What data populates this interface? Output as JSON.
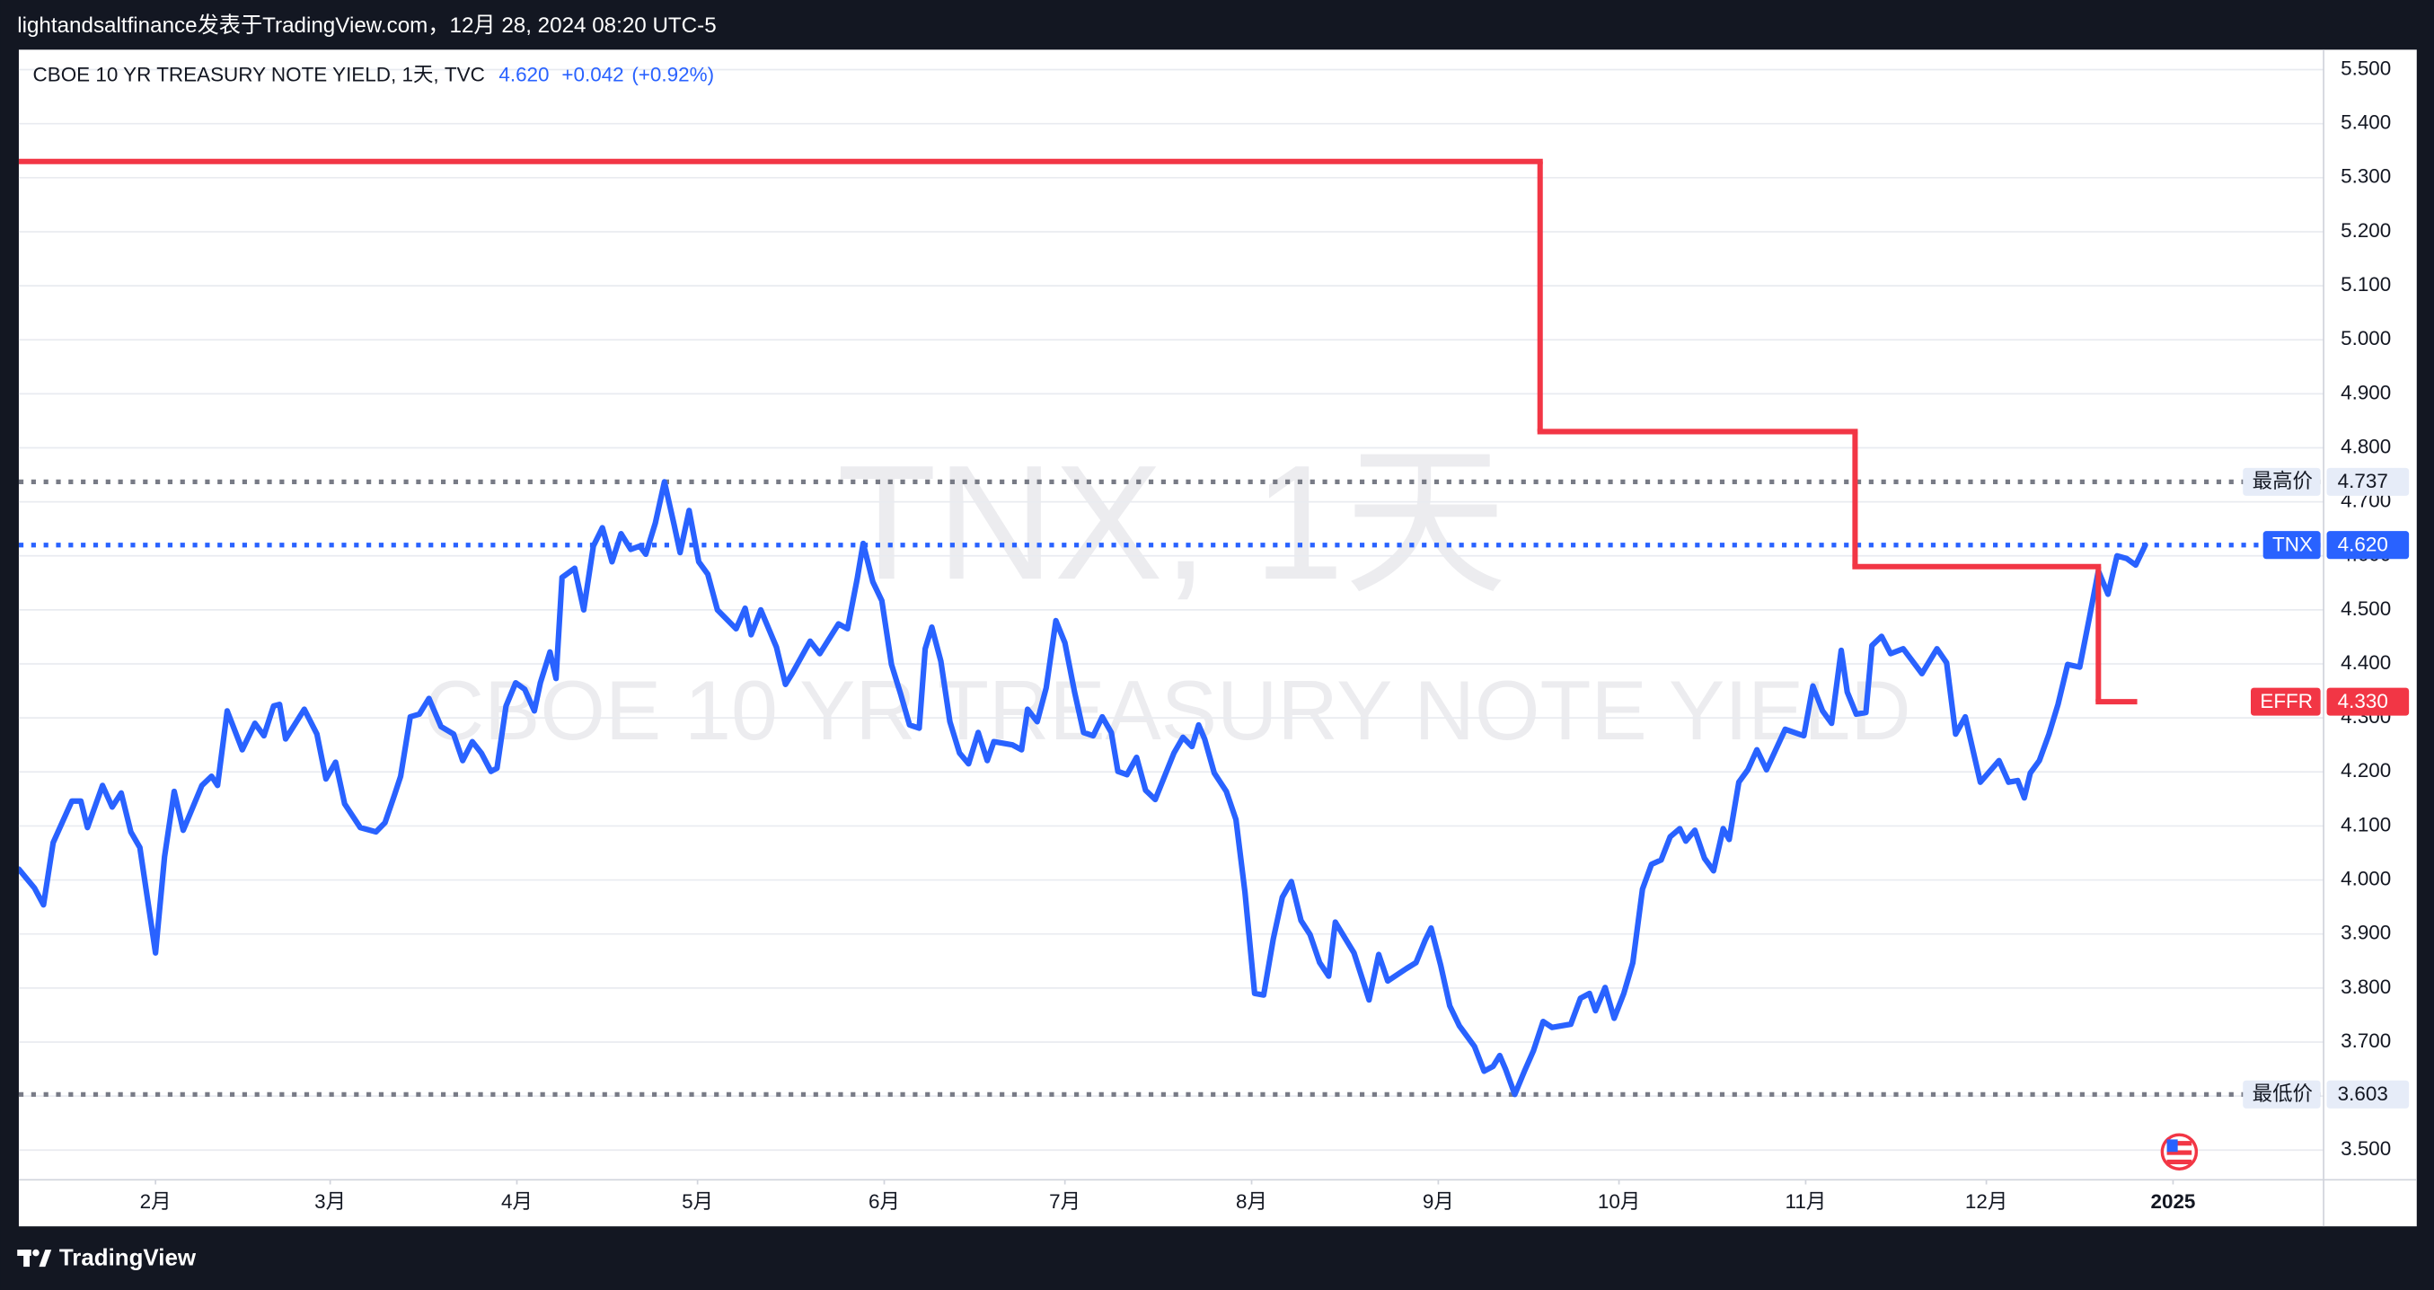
{
  "caption": "lightandsaltfinance发表于TradingView.com，12月 28, 2024 08:20 UTC-5",
  "brand": "TradingView",
  "chart_data": {
    "type": "line",
    "header": {
      "symbol": "CBOE 10 YR TREASURY NOTE YIELD, 1天, TVC",
      "last": "4.620",
      "change": "+0.042",
      "change_pct": "(+0.92%)"
    },
    "watermark": [
      "TNX, 1天",
      "CBOE 10 YR TREASURY NOTE YIELD"
    ],
    "xlim": [
      8.3,
      391
    ],
    "ylim": [
      3.445,
      5.537
    ],
    "grid": true,
    "xticks": [
      {
        "value": 31,
        "label": "2月"
      },
      {
        "value": 60,
        "label": "3月"
      },
      {
        "value": 91,
        "label": "4月"
      },
      {
        "value": 121,
        "label": "5月"
      },
      {
        "value": 152,
        "label": "6月"
      },
      {
        "value": 182,
        "label": "7月"
      },
      {
        "value": 213,
        "label": "8月"
      },
      {
        "value": 244,
        "label": "9月"
      },
      {
        "value": 274,
        "label": "10月"
      },
      {
        "value": 305,
        "label": "11月"
      },
      {
        "value": 335,
        "label": "12月"
      },
      {
        "value": 366,
        "label": "2025"
      }
    ],
    "yticks": [
      {
        "value": 3.5,
        "label": "3.500"
      },
      {
        "value": 3.6,
        "label": "3.600"
      },
      {
        "value": 3.7,
        "label": "3.700"
      },
      {
        "value": 3.8,
        "label": "3.800"
      },
      {
        "value": 3.9,
        "label": "3.900"
      },
      {
        "value": 4.0,
        "label": "4.000"
      },
      {
        "value": 4.1,
        "label": "4.100"
      },
      {
        "value": 4.2,
        "label": "4.200"
      },
      {
        "value": 4.3,
        "label": "4.300"
      },
      {
        "value": 4.4,
        "label": "4.400"
      },
      {
        "value": 4.5,
        "label": "4.500"
      },
      {
        "value": 4.6,
        "label": "4.600"
      },
      {
        "value": 4.7,
        "label": "4.700"
      },
      {
        "value": 4.8,
        "label": "4.800"
      },
      {
        "value": 4.9,
        "label": "4.900"
      },
      {
        "value": 5.0,
        "label": "5.000"
      },
      {
        "value": 5.1,
        "label": "5.100"
      },
      {
        "value": 5.2,
        "label": "5.200"
      },
      {
        "value": 5.3,
        "label": "5.300"
      },
      {
        "value": 5.4,
        "label": "5.400"
      },
      {
        "value": 5.5,
        "label": "5.500"
      }
    ],
    "markers": [
      {
        "name": "最高价",
        "value": 4.737
      },
      {
        "name": "最低价",
        "value": 3.603
      }
    ],
    "marker_color": "#787b86",
    "series": [
      {
        "name": "TNX",
        "color": "#2962ff",
        "last_line": true,
        "last_label": {
          "value": 4.62,
          "label": "4.620"
        },
        "x": [
          8.3,
          10.9,
          12.4,
          14.0,
          17.1,
          18.6,
          19.7,
          22.2,
          23.8,
          25.3,
          26.9,
          28.4,
          31.0,
          32.5,
          34.1,
          35.6,
          38.7,
          40.3,
          41.3,
          42.9,
          45.4,
          47.5,
          49.0,
          50.6,
          51.6,
          52.6,
          55.7,
          57.8,
          59.3,
          60.9,
          62.4,
          65.0,
          67.6,
          69.1,
          70.7,
          71.7,
          73.3,
          74.8,
          76.4,
          78.4,
          80.5,
          82.0,
          83.6,
          85.1,
          86.7,
          87.7,
          89.2,
          90.8,
          92.3,
          93.9,
          94.9,
          96.5,
          97.5,
          98.5,
          100.6,
          102.1,
          103.7,
          105.2,
          106.8,
          108.3,
          109.9,
          111.4,
          112.4,
          114.0,
          115.5,
          117.1,
          118.1,
          119.6,
          121.2,
          122.7,
          124.3,
          127.4,
          128.9,
          129.9,
          131.5,
          134.1,
          135.6,
          136.7,
          139.7,
          141.3,
          144.4,
          145.9,
          147.5,
          148.5,
          150.1,
          151.6,
          153.2,
          154.7,
          156.2,
          157.8,
          158.8,
          159.9,
          161.4,
          162.9,
          164.5,
          166.0,
          167.6,
          169.1,
          170.2,
          173.3,
          174.8,
          175.8,
          177.4,
          178.9,
          180.5,
          182.0,
          183.6,
          185.1,
          186.7,
          188.2,
          189.7,
          190.8,
          192.3,
          193.9,
          195.4,
          197.0,
          200.1,
          201.6,
          203.1,
          204.2,
          205.2,
          206.8,
          208.8,
          210.4,
          211.9,
          213.5,
          215.0,
          216.6,
          218.1,
          219.6,
          221.2,
          222.7,
          224.3,
          225.8,
          226.9,
          230.0,
          231.5,
          232.5,
          234.1,
          235.6,
          238.7,
          240.3,
          241.8,
          242.8,
          244.4,
          245.9,
          247.5,
          250.0,
          251.6,
          253.1,
          254.2,
          255.2,
          256.7,
          258.3,
          259.8,
          261.4,
          262.9,
          266.0,
          267.6,
          269.1,
          270.1,
          271.7,
          273.2,
          274.8,
          276.3,
          277.9,
          279.4,
          281.0,
          282.5,
          284.1,
          285.1,
          286.6,
          288.2,
          289.7,
          291.3,
          292.3,
          293.9,
          295.4,
          296.9,
          298.5,
          301.6,
          304.7,
          306.2,
          307.8,
          309.3,
          310.9,
          311.9,
          313.4,
          315.0,
          316.0,
          317.6,
          319.1,
          321.2,
          324.3,
          326.8,
          328.4,
          329.9,
          331.5,
          334.0,
          337.1,
          338.7,
          340.2,
          341.3,
          342.3,
          343.8,
          345.4,
          346.9,
          348.5,
          350.5,
          352.1,
          353.6,
          355.2,
          356.7,
          358.3,
          359.8,
          361.4
        ],
        "values": [
          4.02,
          3.985,
          3.954,
          4.069,
          4.146,
          4.146,
          4.097,
          4.175,
          4.135,
          4.161,
          4.089,
          4.06,
          3.865,
          4.043,
          4.164,
          4.092,
          4.175,
          4.192,
          4.175,
          4.313,
          4.241,
          4.29,
          4.267,
          4.322,
          4.325,
          4.261,
          4.316,
          4.27,
          4.187,
          4.218,
          4.141,
          4.097,
          4.089,
          4.106,
          4.158,
          4.192,
          4.302,
          4.307,
          4.336,
          4.284,
          4.27,
          4.221,
          4.256,
          4.235,
          4.201,
          4.207,
          4.322,
          4.365,
          4.353,
          4.313,
          4.365,
          4.422,
          4.373,
          4.56,
          4.577,
          4.5,
          4.618,
          4.652,
          4.589,
          4.641,
          4.612,
          4.618,
          4.603,
          4.661,
          4.737,
          4.658,
          4.606,
          4.684,
          4.589,
          4.566,
          4.5,
          4.465,
          4.503,
          4.454,
          4.5,
          4.431,
          4.362,
          4.382,
          4.442,
          4.419,
          4.474,
          4.465,
          4.557,
          4.623,
          4.552,
          4.517,
          4.399,
          4.345,
          4.287,
          4.281,
          4.428,
          4.468,
          4.405,
          4.293,
          4.235,
          4.215,
          4.273,
          4.221,
          4.256,
          4.25,
          4.241,
          4.316,
          4.293,
          4.356,
          4.48,
          4.439,
          4.348,
          4.273,
          4.267,
          4.302,
          4.273,
          4.201,
          4.195,
          4.227,
          4.166,
          4.149,
          4.235,
          4.264,
          4.247,
          4.287,
          4.261,
          4.198,
          4.164,
          4.112,
          3.977,
          3.79,
          3.787,
          3.891,
          3.968,
          3.997,
          3.925,
          3.899,
          3.847,
          3.822,
          3.922,
          3.865,
          3.813,
          3.778,
          3.862,
          3.813,
          3.836,
          3.847,
          3.888,
          3.911,
          3.842,
          3.767,
          3.73,
          3.692,
          3.646,
          3.655,
          3.675,
          3.649,
          3.603,
          3.646,
          3.684,
          3.738,
          3.727,
          3.733,
          3.781,
          3.79,
          3.758,
          3.801,
          3.744,
          3.79,
          3.847,
          3.983,
          4.029,
          4.037,
          4.08,
          4.095,
          4.072,
          4.092,
          4.04,
          4.017,
          4.095,
          4.075,
          4.181,
          4.204,
          4.241,
          4.204,
          4.279,
          4.267,
          4.359,
          4.313,
          4.29,
          4.425,
          4.348,
          4.307,
          4.31,
          4.434,
          4.451,
          4.419,
          4.428,
          4.382,
          4.428,
          4.402,
          4.27,
          4.302,
          4.181,
          4.221,
          4.181,
          4.184,
          4.152,
          4.198,
          4.221,
          4.27,
          4.325,
          4.399,
          4.394,
          4.485,
          4.572,
          4.529,
          4.6,
          4.595,
          4.583,
          4.62
        ]
      },
      {
        "name": "EFFR",
        "color": "#f23645",
        "step": true,
        "last_label": {
          "value": 4.33,
          "label": "4.330"
        },
        "x": [
          8.3,
          260.9,
          313.2,
          353.6,
          359.6
        ],
        "values": [
          5.33,
          4.83,
          4.58,
          4.33,
          4.33
        ]
      }
    ]
  }
}
